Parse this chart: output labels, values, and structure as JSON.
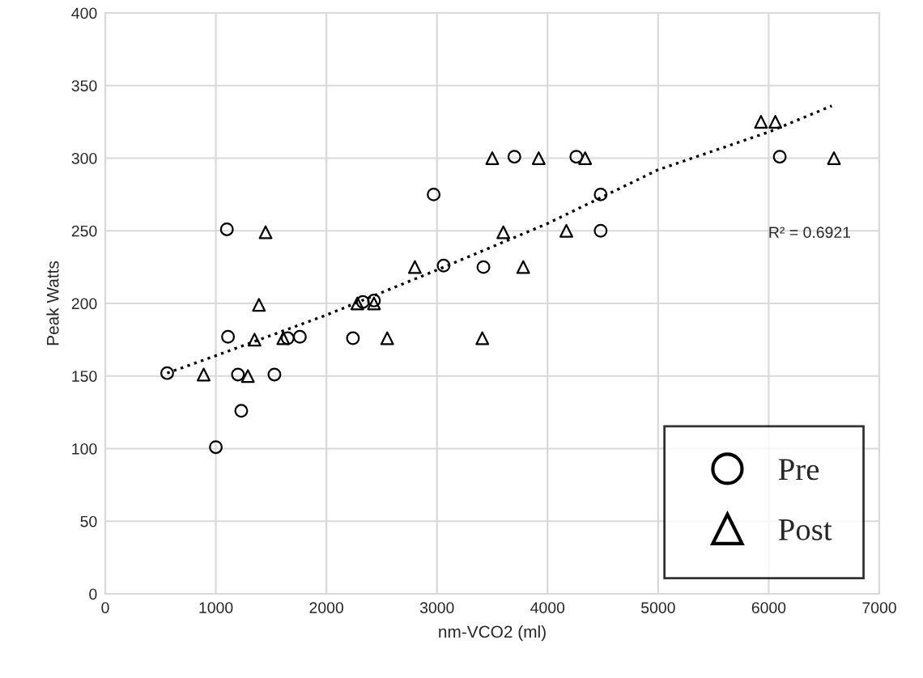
{
  "chart_data": {
    "type": "scatter",
    "xlabel": "nm-VCO2 (ml)",
    "ylabel": "Peak Watts",
    "xlim": [
      0,
      7000
    ],
    "xticks": [
      0,
      1000,
      2000,
      3000,
      4000,
      5000,
      6000,
      7000
    ],
    "ylim": [
      0,
      400
    ],
    "yticks": [
      0,
      50,
      100,
      150,
      200,
      250,
      300,
      350,
      400
    ],
    "grid": true,
    "legend": "bottom right",
    "annotations": [
      "R² = 0.6921"
    ],
    "series": [
      {
        "name": "Pre",
        "marker": "circle",
        "color": "#000000",
        "x": [
          560,
          1000,
          1110,
          1100,
          1200,
          1230,
          1530,
          1650,
          1760,
          2240,
          2330,
          2430,
          2970,
          3060,
          3420,
          3700,
          4260,
          4480,
          4480,
          6100
        ],
        "values": [
          152,
          101,
          177,
          251,
          151,
          126,
          151,
          176,
          177,
          176,
          201,
          202,
          275,
          226,
          225,
          301,
          301,
          275,
          250,
          301
        ]
      },
      {
        "name": "Post",
        "marker": "triangle",
        "color": "#000000",
        "x": [
          890,
          1290,
          1350,
          1390,
          1450,
          1610,
          2280,
          2430,
          2550,
          2800,
          3410,
          3500,
          3600,
          3780,
          3920,
          4170,
          4340,
          5930,
          6060,
          6590
        ],
        "values": [
          151,
          150,
          175,
          199,
          249,
          176,
          200,
          200,
          176,
          225,
          176,
          300,
          249,
          225,
          300,
          250,
          300,
          325,
          325,
          300
        ]
      },
      {
        "type": "line",
        "line_style": "dotted",
        "marker": "none",
        "color": "#000000",
        "x": [
          560,
          1000,
          2000,
          3000,
          4000,
          5000,
          6000,
          6570
        ],
        "values": [
          152,
          164,
          192,
          223,
          255,
          292,
          318,
          336
        ]
      }
    ]
  }
}
